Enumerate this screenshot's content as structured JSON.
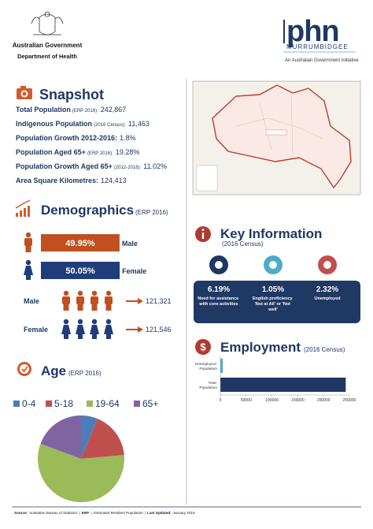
{
  "header": {
    "government": "Australian Government",
    "department": "Department of Health",
    "logo": "phn",
    "region": "MURRUMBIDGEE",
    "tagline": "An Australian Government Initiative"
  },
  "snapshot": {
    "title": "Snapshot",
    "rows": [
      {
        "label": "Total Population",
        "note": "(ERP 2016):",
        "value": "242,867"
      },
      {
        "label": "Indigenous Population",
        "note": "(2016 Census):",
        "value": "11,463"
      },
      {
        "label": "Population Growth 2012-2016:",
        "value": "1.8%"
      },
      {
        "label": "Population Aged 65+",
        "note": "(ERP 2016):",
        "value": "19.28%"
      },
      {
        "label": "Population Growth Aged 65+",
        "note": "(2012-2016):",
        "value": "11.02%"
      },
      {
        "label": "Area Square Kilometres:",
        "value": "124,413"
      }
    ]
  },
  "demographics": {
    "title": "Demographics",
    "note": "(ERP 2016)",
    "bars": [
      {
        "label": "Male",
        "value": 49.95,
        "value_label": "49.95%",
        "color": "#c0501f"
      },
      {
        "label": "Female",
        "value": 50.05,
        "value_label": "50.05%",
        "color": "#1f3d7a"
      }
    ],
    "counts": [
      {
        "label": "Male",
        "value": "121,321",
        "color": "#c0501f"
      },
      {
        "label": "Female",
        "value": "121,546",
        "color": "#1f3d7a"
      }
    ]
  },
  "age": {
    "title": "Age",
    "note": "(ERP 2016)",
    "chart": {
      "type": "pie",
      "categories": [
        "0-4",
        "5-18",
        "19-64",
        "65+"
      ],
      "values": [
        6.2,
        17.4,
        57.1,
        19.3
      ],
      "colors": [
        "#4a7ebb",
        "#c0504d",
        "#9bbb59",
        "#8064a2"
      ]
    }
  },
  "key_information": {
    "title": "Key Information",
    "note": "(2016 Census)",
    "items": [
      {
        "value": "6.19%",
        "description": "Need for assistance with core activities",
        "color": "#1f3864"
      },
      {
        "value": "1.05%",
        "description": "English proficiency 'Not at All' or 'Not well'",
        "color": "#4bacc6"
      },
      {
        "value": "2.32%",
        "description": "Unemployed",
        "color": "#c0504d"
      }
    ]
  },
  "employment": {
    "title": "Employment",
    "note": "(2016 Census)",
    "chart": {
      "type": "bar",
      "orientation": "horizontal",
      "categories": [
        "Unemployed Population",
        "Total Population"
      ],
      "values": [
        4700,
        242867
      ],
      "colors": [
        "#4bacc6",
        "#1f3864"
      ],
      "xlim": [
        0,
        250000
      ],
      "xticks": [
        0,
        50000,
        100000,
        150000,
        200000,
        250000
      ]
    }
  },
  "footer": {
    "parts": [
      {
        "text": "Source:",
        "bold": true
      },
      {
        "text": "Australian Bureau of Statistics",
        "bold": false
      },
      {
        "text": "|",
        "bold": false
      },
      {
        "text": "ERP",
        "bold": true
      },
      {
        "text": "= Estimated Resident Population",
        "bold": false
      },
      {
        "text": "|",
        "bold": false
      },
      {
        "text": "Last Updated:",
        "bold": true
      },
      {
        "text": "January 2018",
        "bold": false
      }
    ]
  }
}
